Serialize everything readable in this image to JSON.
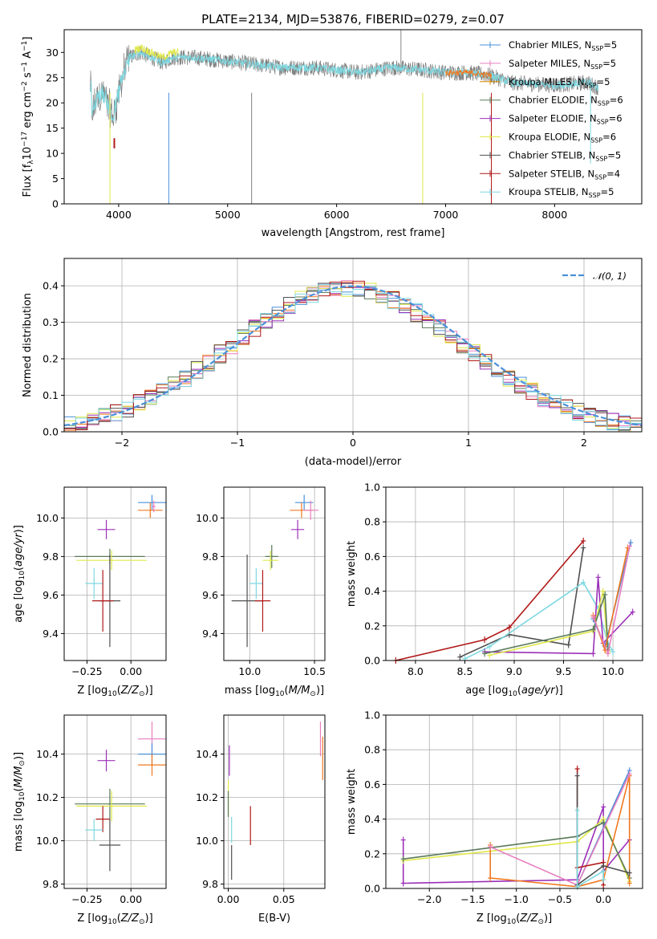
{
  "title": "PLATE=2134, MJD=53876, FIBERID=0279, z=0.07",
  "colors": {
    "Chabrier MILES": "#4a90d9",
    "Salpeter MILES": "#e87fbf",
    "Kroupa MILES": "#d98c00",
    "Chabrier ELODIE": "#5a7a5a",
    "Salpeter ELODIE": "#9b30b8",
    "Kroupa ELODIE": "#e0e84a",
    "Chabrier STELIB": "#505050",
    "Salpeter STELIB": "#b01818",
    "Kroupa STELIB": "#7ed8e0",
    "orange_series": "#f07820",
    "normal": "#4a90d9"
  },
  "legend1": [
    {
      "key": "Chabrier MILES",
      "text": "Chabrier MILES, N",
      "ssp": "5"
    },
    {
      "key": "Salpeter MILES",
      "text": "Salpeter MILES, N",
      "ssp": "5"
    },
    {
      "key": "Kroupa MILES",
      "text": "Kroupa MILES, N",
      "ssp": "5"
    },
    {
      "key": "Chabrier ELODIE",
      "text": "Chabrier ELODIE, N",
      "ssp": "6"
    },
    {
      "key": "Salpeter ELODIE",
      "text": "Salpeter ELODIE, N",
      "ssp": "6"
    },
    {
      "key": "Kroupa ELODIE",
      "text": "Kroupa ELODIE, N",
      "ssp": "6"
    },
    {
      "key": "Chabrier STELIB",
      "text": "Chabrier STELIB, N",
      "ssp": "5"
    },
    {
      "key": "Salpeter STELIB",
      "text": "Salpeter STELIB, N",
      "ssp": "4"
    },
    {
      "key": "Kroupa STELIB",
      "text": "Kroupa STELIB, N",
      "ssp": "5"
    }
  ],
  "ssp_sub": "SSP",
  "legend2": "𝒩(0, 1)",
  "chart_data": [
    {
      "id": "spectrum",
      "type": "line",
      "xlabel": "wavelength [Angstrom, rest frame]",
      "ylabel": "Flux [f_λ10^−17 erg cm^−2 s^−1 A^−1]",
      "xlim": [
        3500,
        8800
      ],
      "ylim": [
        0,
        34.5
      ],
      "xticks": [
        4000,
        5000,
        6000,
        7000,
        8000
      ],
      "yticks": [
        0,
        5,
        10,
        15,
        20,
        25,
        30
      ],
      "continuum": [
        [
          3750,
          17
        ],
        [
          3800,
          21
        ],
        [
          3850,
          22
        ],
        [
          3900,
          20
        ],
        [
          3950,
          17
        ],
        [
          4000,
          22
        ],
        [
          4050,
          26
        ],
        [
          4100,
          29
        ],
        [
          4200,
          30
        ],
        [
          4300,
          29
        ],
        [
          4400,
          28
        ],
        [
          4500,
          29
        ],
        [
          4700,
          29
        ],
        [
          4900,
          28.5
        ],
        [
          5100,
          28
        ],
        [
          5300,
          27.5
        ],
        [
          5500,
          27
        ],
        [
          5800,
          27
        ],
        [
          6000,
          26.5
        ],
        [
          6200,
          26
        ],
        [
          6500,
          27
        ],
        [
          6800,
          26.5
        ],
        [
          7000,
          26
        ],
        [
          7200,
          26
        ],
        [
          7400,
          25.5
        ],
        [
          7600,
          24
        ],
        [
          8000,
          23.5
        ],
        [
          8300,
          24
        ],
        [
          8400,
          23
        ]
      ]
    },
    {
      "id": "residuals",
      "type": "step",
      "xlabel": "(data-model)/error",
      "ylabel": "Normed distribution",
      "xlim": [
        -2.5,
        2.5
      ],
      "ylim": [
        0,
        0.475
      ],
      "xticks": [
        -2,
        -1,
        0,
        1,
        2
      ],
      "yticks": [
        0.0,
        0.1,
        0.2,
        0.3,
        0.4
      ]
    },
    {
      "id": "z_age",
      "type": "errorbar",
      "xlabel": "Z [log10(Z/Z⊙)]",
      "ylabel": "age [log10(age/yr)]",
      "xlim": [
        -0.38,
        0.2
      ],
      "ylim": [
        9.26,
        10.16
      ],
      "xticks": [
        -0.25,
        0,
        "0.00"
      ],
      "yticks": [
        9.4,
        9.6,
        9.8,
        10.0
      ],
      "points": [
        {
          "s": "Chabrier MILES",
          "x": 0.12,
          "y": 10.08,
          "dx": 0.08,
          "dy": 0.04
        },
        {
          "s": "orange_series",
          "x": 0.11,
          "y": 10.04,
          "dx": 0.07,
          "dy": 0.04
        },
        {
          "s": "Salpeter MILES",
          "x": 0.13,
          "y": 10.06,
          "dx": 0.01,
          "dy": 0.03
        },
        {
          "s": "Salpeter ELODIE",
          "x": -0.14,
          "y": 9.94,
          "dx": 0.05,
          "dy": 0.05
        },
        {
          "s": "Chabrier ELODIE",
          "x": -0.12,
          "y": 9.8,
          "dx": 0.2,
          "dy": 0.04
        },
        {
          "s": "Kroupa ELODIE",
          "x": -0.11,
          "y": 9.78,
          "dx": 0.2,
          "dy": 0.05
        },
        {
          "s": "Kroupa STELIB",
          "x": -0.21,
          "y": 9.66,
          "dx": 0.05,
          "dy": 0.08
        },
        {
          "s": "Chabrier STELIB",
          "x": -0.12,
          "y": 9.57,
          "dx": 0.06,
          "dy": 0.24
        },
        {
          "s": "Salpeter STELIB",
          "x": -0.16,
          "y": 9.57,
          "dx": 0.06,
          "dy": 0.16
        }
      ]
    },
    {
      "id": "mass_age",
      "type": "errorbar",
      "xlabel": "mass [log10(M/M⊙)]",
      "ylabel": "",
      "xlim": [
        9.8,
        10.58
      ],
      "ylim": [
        9.26,
        10.16
      ],
      "xticks": [
        10.0,
        10.5
      ],
      "yticks": [
        9.4,
        9.6,
        9.8,
        10.0
      ],
      "points": [
        {
          "s": "Chabrier MILES",
          "x": 10.42,
          "y": 10.08,
          "dx": 0.07,
          "dy": 0.04
        },
        {
          "s": "orange_series",
          "x": 10.4,
          "y": 10.04,
          "dx": 0.09,
          "dy": 0.04
        },
        {
          "s": "Salpeter MILES",
          "x": 10.47,
          "y": 10.04,
          "dx": 0.06,
          "dy": 0.05
        },
        {
          "s": "Salpeter ELODIE",
          "x": 10.37,
          "y": 9.94,
          "dx": 0.05,
          "dy": 0.05
        },
        {
          "s": "Chabrier ELODIE",
          "x": 10.17,
          "y": 9.8,
          "dx": 0.05,
          "dy": 0.06
        },
        {
          "s": "Kroupa ELODIE",
          "x": 10.16,
          "y": 9.78,
          "dx": 0.06,
          "dy": 0.05
        },
        {
          "s": "Kroupa STELIB",
          "x": 10.05,
          "y": 9.66,
          "dx": 0.05,
          "dy": 0.08
        },
        {
          "s": "Chabrier STELIB",
          "x": 9.98,
          "y": 9.57,
          "dx": 0.12,
          "dy": 0.24
        },
        {
          "s": "Salpeter STELIB",
          "x": 10.1,
          "y": 9.57,
          "dx": 0.06,
          "dy": 0.16
        }
      ]
    },
    {
      "id": "age_weight",
      "type": "line",
      "xlabel": "age [log10(age/yr)]",
      "ylabel": "mass weight",
      "xlim": [
        7.7,
        10.3
      ],
      "ylim": [
        0,
        1.0
      ],
      "xticks": [
        8.0,
        8.5,
        9.0,
        9.5,
        10.0
      ],
      "yticks": [
        0.0,
        0.2,
        0.4,
        0.6,
        0.8,
        1.0
      ],
      "series": [
        {
          "s": "Salpeter STELIB",
          "pts": [
            [
              7.8,
              0.0
            ],
            [
              8.7,
              0.12
            ],
            [
              8.95,
              0.19
            ],
            [
              9.7,
              0.69
            ]
          ]
        },
        {
          "s": "Chabrier STELIB",
          "pts": [
            [
              8.45,
              0.02
            ],
            [
              8.95,
              0.15
            ],
            [
              9.55,
              0.09
            ],
            [
              9.7,
              0.65
            ]
          ]
        },
        {
          "s": "Kroupa STELIB",
          "pts": [
            [
              8.5,
              0.01
            ],
            [
              8.75,
              0.08
            ],
            [
              9.7,
              0.45
            ],
            [
              9.85,
              0.3
            ],
            [
              9.95,
              0.1
            ],
            [
              10.0,
              0.05
            ]
          ]
        },
        {
          "s": "Salpeter ELODIE",
          "pts": [
            [
              8.7,
              0.05
            ],
            [
              9.8,
              0.04
            ],
            [
              9.85,
              0.48
            ],
            [
              9.9,
              0.1
            ],
            [
              10.2,
              0.28
            ]
          ]
        },
        {
          "s": "Kroupa ELODIE",
          "pts": [
            [
              8.75,
              0.03
            ],
            [
              9.8,
              0.17
            ],
            [
              9.9,
              0.4
            ],
            [
              9.95,
              0.05
            ]
          ]
        },
        {
          "s": "Chabrier ELODIE",
          "pts": [
            [
              8.7,
              0.04
            ],
            [
              9.8,
              0.18
            ],
            [
              9.92,
              0.38
            ],
            [
              9.95,
              0.06
            ]
          ]
        },
        {
          "s": "Chabrier MILES",
          "pts": [
            [
              9.8,
              0.24
            ],
            [
              9.92,
              0.08
            ],
            [
              10.18,
              0.68
            ]
          ]
        },
        {
          "s": "orange_series",
          "pts": [
            [
              9.8,
              0.26
            ],
            [
              9.92,
              0.06
            ],
            [
              10.15,
              0.65
            ]
          ]
        },
        {
          "s": "Salpeter MILES",
          "pts": [
            [
              9.8,
              0.25
            ],
            [
              9.95,
              0.04
            ],
            [
              10.17,
              0.66
            ]
          ]
        }
      ]
    },
    {
      "id": "z_mass",
      "type": "errorbar",
      "xlabel": "Z [log10(Z/Z⊙)]",
      "ylabel": "mass [log10(M/M⊙)]",
      "xlim": [
        -0.38,
        0.2
      ],
      "ylim": [
        9.78,
        10.58
      ],
      "xticks": [
        -0.25,
        0,
        "0.00"
      ],
      "yticks": [
        9.8,
        10.0,
        10.2,
        10.4
      ],
      "points": [
        {
          "s": "Salpeter MILES",
          "x": 0.12,
          "y": 10.47,
          "dx": 0.08,
          "dy": 0.08
        },
        {
          "s": "Chabrier MILES",
          "x": 0.12,
          "y": 10.4,
          "dx": 0.08,
          "dy": 0.05
        },
        {
          "s": "orange_series",
          "x": 0.12,
          "y": 10.35,
          "dx": 0.08,
          "dy": 0.05
        },
        {
          "s": "Salpeter ELODIE",
          "x": -0.14,
          "y": 10.37,
          "dx": 0.05,
          "dy": 0.05
        },
        {
          "s": "Chabrier ELODIE",
          "x": -0.12,
          "y": 10.17,
          "dx": 0.2,
          "dy": 0.07
        },
        {
          "s": "Kroupa ELODIE",
          "x": -0.11,
          "y": 10.16,
          "dx": 0.2,
          "dy": 0.07
        },
        {
          "s": "Salpeter STELIB",
          "x": -0.16,
          "y": 10.1,
          "dx": 0.04,
          "dy": 0.06
        },
        {
          "s": "Kroupa STELIB",
          "x": -0.21,
          "y": 10.05,
          "dx": 0.05,
          "dy": 0.05
        },
        {
          "s": "Chabrier STELIB",
          "x": -0.12,
          "y": 9.98,
          "dx": 0.06,
          "dy": 0.12
        }
      ]
    },
    {
      "id": "ebv_mass",
      "type": "errorbar",
      "xlabel": "E(B-V)",
      "ylabel": "",
      "xlim": [
        -0.004,
        0.087
      ],
      "ylim": [
        9.78,
        10.58
      ],
      "xticks": [
        0.0,
        0.05
      ],
      "yticks": [
        9.8,
        10.0,
        10.2,
        10.4
      ],
      "points": [
        {
          "s": "Salpeter MILES",
          "x": 0.083,
          "y": 10.47,
          "dx": 0,
          "dy": 0.08
        },
        {
          "s": "orange_series",
          "x": 0.085,
          "y": 10.38,
          "dx": 0,
          "dy": 0.1
        },
        {
          "s": "Salpeter ELODIE",
          "x": 0.001,
          "y": 10.37,
          "dx": 0,
          "dy": 0.07
        },
        {
          "s": "Kroupa ELODIE",
          "x": 0.0,
          "y": 10.2,
          "dx": 0,
          "dy": 0.08
        },
        {
          "s": "Chabrier ELODIE",
          "x": 0.0,
          "y": 10.17,
          "dx": 0,
          "dy": 0.06
        },
        {
          "s": "Salpeter STELIB",
          "x": 0.02,
          "y": 10.07,
          "dx": 0,
          "dy": 0.09
        },
        {
          "s": "Kroupa STELIB",
          "x": 0.003,
          "y": 10.05,
          "dx": 0,
          "dy": 0.06
        },
        {
          "s": "Chabrier STELIB",
          "x": 0.003,
          "y": 9.9,
          "dx": 0,
          "dy": 0.08
        }
      ]
    },
    {
      "id": "z_weight",
      "type": "line",
      "xlabel": "Z [log10(Z/Z⊙)]",
      "ylabel": "mass weight",
      "xlim": [
        -2.5,
        0.45
      ],
      "ylim": [
        0,
        1.0
      ],
      "xticks": [
        -2.0,
        -1.5,
        -1.0,
        -0.5,
        0.0
      ],
      "yticks": [
        0.0,
        0.2,
        0.4,
        0.6,
        0.8,
        1.0
      ],
      "series": [
        {
          "s": "Salpeter ELODIE",
          "pts": [
            [
              -2.3,
              0.28
            ],
            [
              -2.3,
              0.03
            ],
            [
              -0.3,
              0.05
            ],
            [
              0.0,
              0.47
            ],
            [
              0.0,
              0.1
            ],
            [
              0.3,
              0.28
            ]
          ]
        },
        {
          "s": "Kroupa ELODIE",
          "pts": [
            [
              -2.3,
              0.16
            ],
            [
              -0.3,
              0.27
            ],
            [
              0.0,
              0.4
            ],
            [
              0.3,
              0.04
            ]
          ]
        },
        {
          "s": "Chabrier ELODIE",
          "pts": [
            [
              -2.3,
              0.17
            ],
            [
              -0.3,
              0.3
            ],
            [
              0.0,
              0.38
            ],
            [
              0.3,
              0.06
            ]
          ]
        },
        {
          "s": "orange_series",
          "pts": [
            [
              -1.3,
              0.25
            ],
            [
              -1.3,
              0.06
            ],
            [
              -0.3,
              0.01
            ],
            [
              0.0,
              0.05
            ],
            [
              0.3,
              0.65
            ],
            [
              0.3,
              0.03
            ]
          ]
        },
        {
          "s": "Chabrier MILES",
          "pts": [
            [
              -0.3,
              0.02
            ],
            [
              0.3,
              0.68
            ]
          ]
        },
        {
          "s": "Salpeter MILES",
          "pts": [
            [
              -1.3,
              0.24
            ],
            [
              -0.3,
              0.02
            ],
            [
              0.3,
              0.66
            ]
          ]
        },
        {
          "s": "Salpeter STELIB",
          "pts": [
            [
              -0.3,
              0.69
            ],
            [
              -0.3,
              0.12
            ],
            [
              0.0,
              0.15
            ],
            [
              0.0,
              0.02
            ]
          ]
        },
        {
          "s": "Chabrier STELIB",
          "pts": [
            [
              -0.3,
              0.65
            ],
            [
              -0.3,
              0.02
            ],
            [
              0.0,
              0.13
            ],
            [
              0.3,
              0.09
            ]
          ]
        },
        {
          "s": "Kroupa STELIB",
          "pts": [
            [
              -0.3,
              0.45
            ],
            [
              -0.3,
              0.01
            ],
            [
              0.0,
              0.1
            ],
            [
              0.0,
              0.05
            ]
          ]
        }
      ]
    }
  ]
}
